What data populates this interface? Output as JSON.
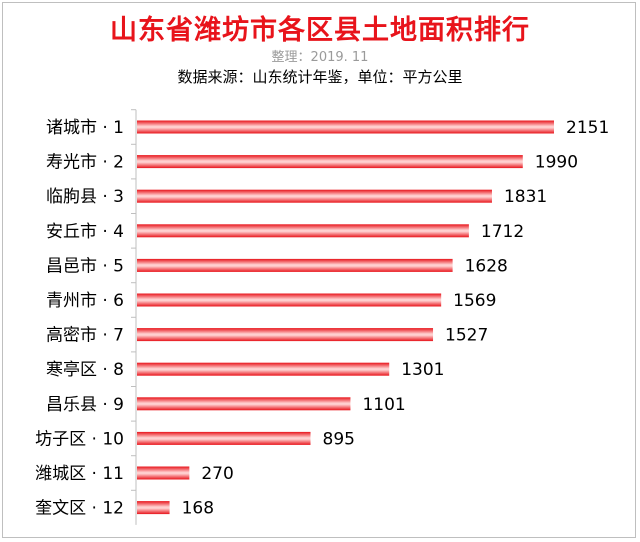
{
  "chart_data": {
    "type": "bar",
    "orientation": "horizontal",
    "title": "山东省潍坊市各区县土地面积排行",
    "subtitle": "整理：2019. 11",
    "source": "数据来源：山东统计年鉴，单位：平方公里",
    "categories": [
      "诸城市 · 1",
      "寿光市 · 2",
      "临朐县 · 3",
      "安丘市 · 4",
      "昌邑市 · 5",
      "青州市 · 6",
      "高密市 · 7",
      "寒亭区 · 8",
      "昌乐县 · 9",
      "坊子区 · 10",
      "潍城区 · 11",
      "奎文区 · 12"
    ],
    "values": [
      2151,
      1990,
      1831,
      1712,
      1628,
      1569,
      1527,
      1301,
      1101,
      895,
      270,
      168
    ],
    "xlim": [
      0,
      2151
    ],
    "grid": false,
    "legend": "none",
    "bar_color": "#e8141b",
    "bar_highlight": "#ffd0d0",
    "axis_color": "#bfbfbf"
  }
}
